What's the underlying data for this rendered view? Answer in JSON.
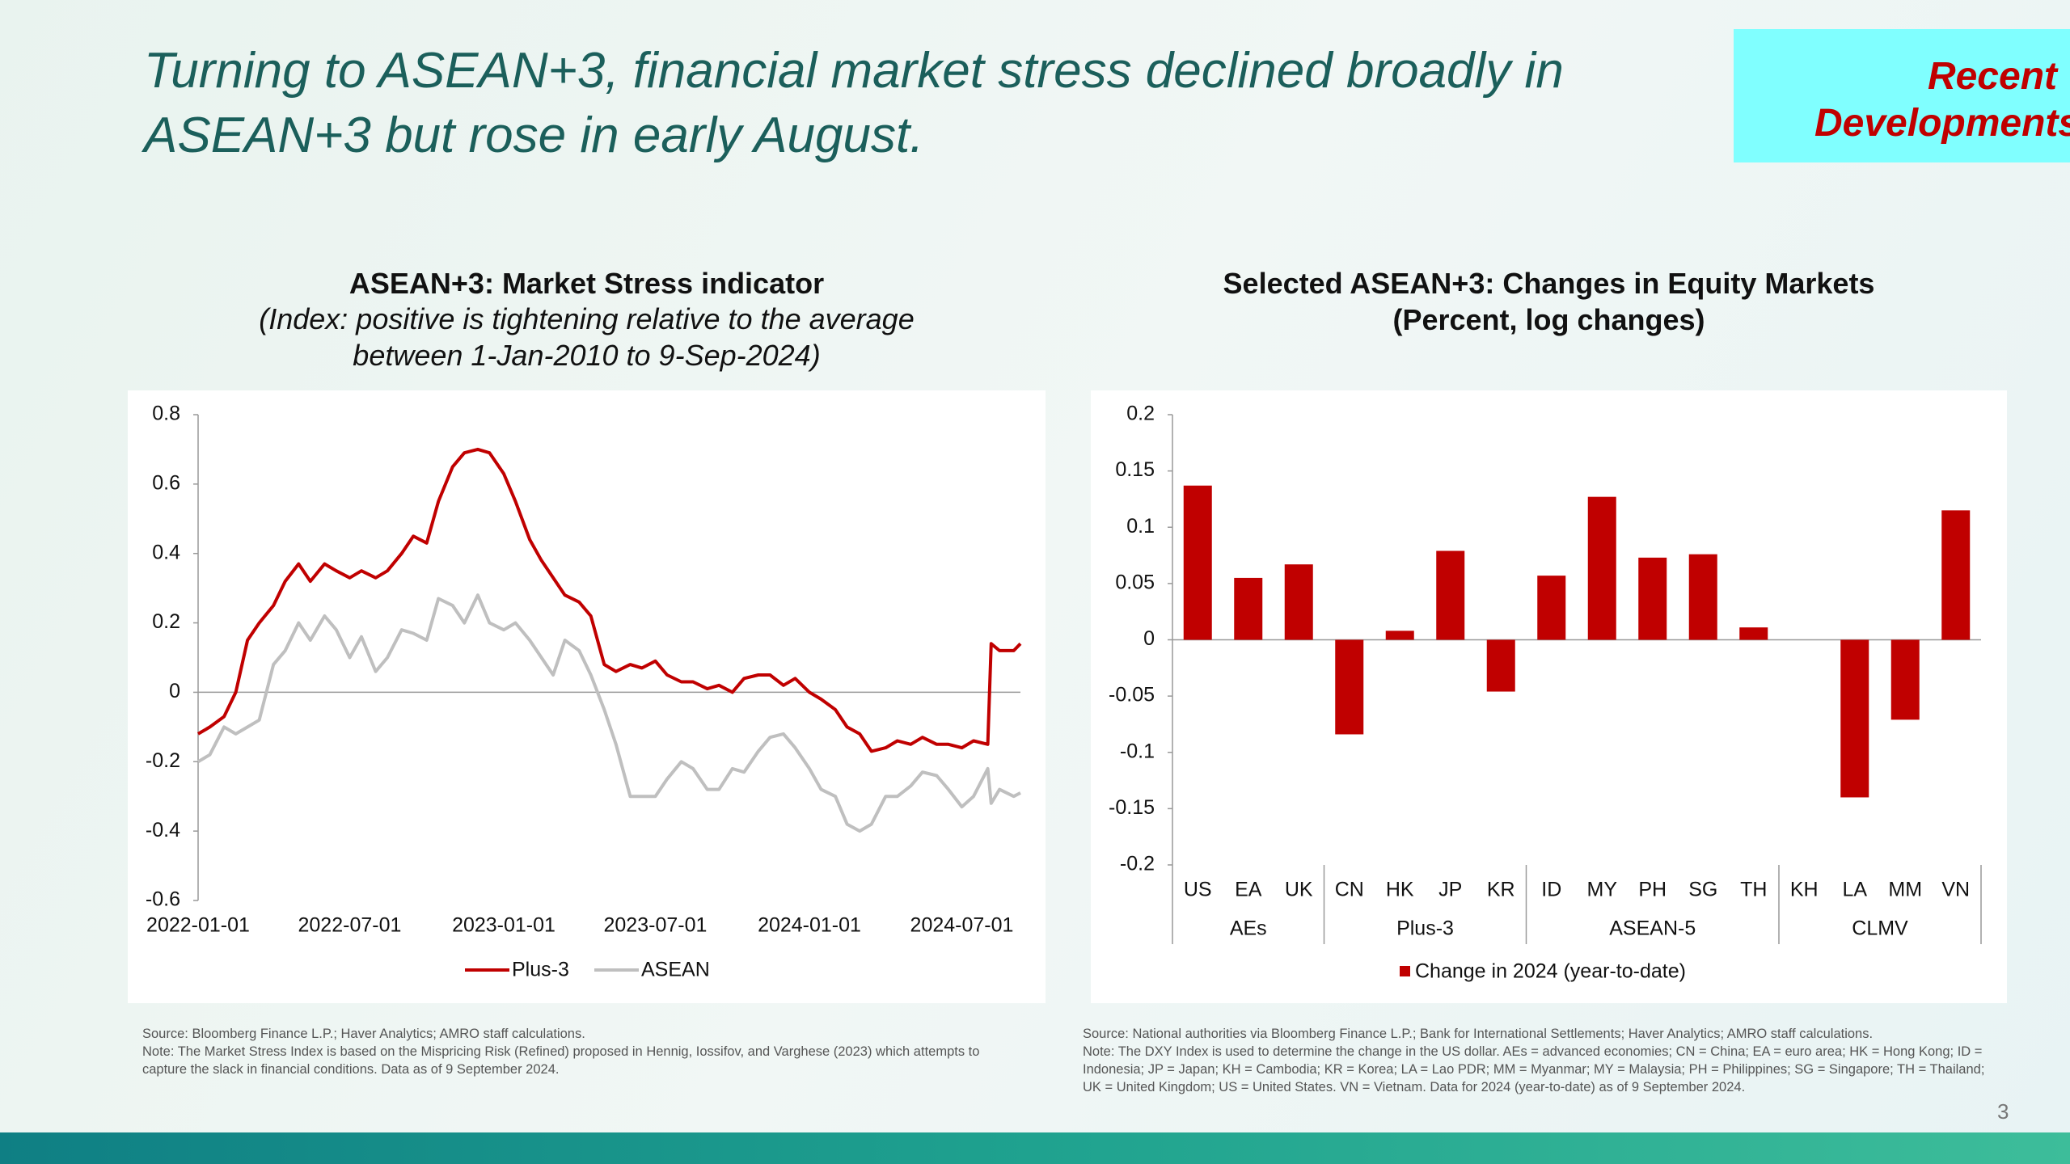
{
  "slide": {
    "title": "Turning to ASEAN+3, financial market stress declined broadly in ASEAN+3 but rose in early August.",
    "tag": "Recent Developments",
    "page": "3"
  },
  "chart_data": [
    {
      "type": "line",
      "title": "ASEAN+3: Market Stress indicator",
      "subtitle": "(Index: positive is tightening relative to the average between 1-Jan-2010 to 9-Sep-2024)",
      "x": [
        "2022-01-01",
        "2022-01-15",
        "2022-02-01",
        "2022-02-15",
        "2022-03-01",
        "2022-03-15",
        "2022-04-01",
        "2022-04-15",
        "2022-05-01",
        "2022-05-15",
        "2022-06-01",
        "2022-06-15",
        "2022-07-01",
        "2022-07-15",
        "2022-08-01",
        "2022-08-15",
        "2022-09-01",
        "2022-09-15",
        "2022-10-01",
        "2022-10-15",
        "2022-11-01",
        "2022-11-15",
        "2022-12-01",
        "2022-12-15",
        "2023-01-01",
        "2023-01-15",
        "2023-02-01",
        "2023-02-15",
        "2023-03-01",
        "2023-03-15",
        "2023-04-01",
        "2023-04-15",
        "2023-05-01",
        "2023-05-15",
        "2023-06-01",
        "2023-06-15",
        "2023-07-01",
        "2023-07-15",
        "2023-08-01",
        "2023-08-15",
        "2023-09-01",
        "2023-09-15",
        "2023-10-01",
        "2023-10-15",
        "2023-11-01",
        "2023-11-15",
        "2023-12-01",
        "2023-12-15",
        "2024-01-01",
        "2024-01-15",
        "2024-02-01",
        "2024-02-15",
        "2024-03-01",
        "2024-03-15",
        "2024-04-01",
        "2024-04-15",
        "2024-05-01",
        "2024-05-15",
        "2024-06-01",
        "2024-06-15",
        "2024-07-01",
        "2024-07-15",
        "2024-08-01",
        "2024-08-05",
        "2024-08-15",
        "2024-09-01",
        "2024-09-09"
      ],
      "series": [
        {
          "name": "Plus-3",
          "color": "#c00000",
          "values": [
            -0.12,
            -0.1,
            -0.07,
            0.0,
            0.15,
            0.2,
            0.25,
            0.32,
            0.37,
            0.32,
            0.37,
            0.35,
            0.33,
            0.35,
            0.33,
            0.35,
            0.4,
            0.45,
            0.43,
            0.55,
            0.65,
            0.69,
            0.7,
            0.69,
            0.63,
            0.55,
            0.44,
            0.38,
            0.33,
            0.28,
            0.26,
            0.22,
            0.08,
            0.06,
            0.08,
            0.07,
            0.09,
            0.05,
            0.03,
            0.03,
            0.01,
            0.02,
            0.0,
            0.04,
            0.05,
            0.05,
            0.02,
            0.04,
            0.0,
            -0.02,
            -0.05,
            -0.1,
            -0.12,
            -0.17,
            -0.16,
            -0.14,
            -0.15,
            -0.13,
            -0.15,
            -0.15,
            -0.16,
            -0.14,
            -0.15,
            0.14,
            0.12,
            0.12,
            0.14
          ]
        },
        {
          "name": "ASEAN",
          "color": "#bfbfbf",
          "values": [
            -0.2,
            -0.18,
            -0.1,
            -0.12,
            -0.1,
            -0.08,
            0.08,
            0.12,
            0.2,
            0.15,
            0.22,
            0.18,
            0.1,
            0.16,
            0.06,
            0.1,
            0.18,
            0.17,
            0.15,
            0.27,
            0.25,
            0.2,
            0.28,
            0.2,
            0.18,
            0.2,
            0.15,
            0.1,
            0.05,
            0.15,
            0.12,
            0.05,
            -0.05,
            -0.15,
            -0.3,
            -0.3,
            -0.3,
            -0.25,
            -0.2,
            -0.22,
            -0.28,
            -0.28,
            -0.22,
            -0.23,
            -0.17,
            -0.13,
            -0.12,
            -0.16,
            -0.22,
            -0.28,
            -0.3,
            -0.38,
            -0.4,
            -0.38,
            -0.3,
            -0.3,
            -0.27,
            -0.23,
            -0.24,
            -0.28,
            -0.33,
            -0.3,
            -0.22,
            -0.32,
            -0.28,
            -0.3,
            -0.29
          ]
        }
      ],
      "xlim": [
        "2022-01-01",
        "2024-09-09"
      ],
      "xticks": [
        "2022-01-01",
        "2022-07-01",
        "2023-01-01",
        "2023-07-01",
        "2024-01-01",
        "2024-07-01"
      ],
      "ylim": [
        -0.6,
        0.8
      ],
      "yticks": [
        -0.6,
        -0.4,
        -0.2,
        0,
        0.2,
        0.4,
        0.6,
        0.8
      ],
      "legend": "bottom",
      "source": "Source: Bloomberg Finance L.P.; Haver Analytics; AMRO staff calculations.",
      "note": "Note: The Market Stress Index is based on the Mispricing Risk (Refined) proposed in Hennig, Iossifov, and Varghese (2023) which attempts to capture the slack in financial conditions. Data as of 9 September 2024."
    },
    {
      "type": "bar",
      "title": "Selected ASEAN+3: Changes in Equity Markets",
      "subtitle": "(Percent, log changes)",
      "groups": [
        {
          "label": "AEs",
          "categories": [
            "US",
            "EA",
            "UK"
          ]
        },
        {
          "label": "Plus-3",
          "categories": [
            "CN",
            "HK",
            "JP",
            "KR"
          ]
        },
        {
          "label": "ASEAN-5",
          "categories": [
            "ID",
            "MY",
            "PH",
            "SG",
            "TH"
          ]
        },
        {
          "label": "CLMV",
          "categories": [
            "KH",
            "LA",
            "MM",
            "VN"
          ]
        }
      ],
      "series": [
        {
          "name": "Change in 2024 (year-to-date)",
          "color": "#c00000",
          "values": [
            0.137,
            0.055,
            0.067,
            -0.084,
            0.008,
            0.079,
            -0.046,
            0.057,
            0.127,
            0.073,
            0.076,
            0.011,
            null,
            -0.14,
            -0.071,
            0.115
          ]
        }
      ],
      "ylim": [
        -0.2,
        0.2
      ],
      "yticks": [
        -0.2,
        -0.15,
        -0.1,
        -0.05,
        0,
        0.05,
        0.1,
        0.15,
        0.2
      ],
      "legend": "bottom",
      "source": "Source: National authorities via Bloomberg Finance L.P.; Bank for International Settlements; Haver Analytics; AMRO staff calculations.",
      "note": "Note: The DXY Index is used to determine the change in the US dollar. AEs = advanced economies; CN = China; EA = euro area; HK = Hong Kong; ID = Indonesia; JP = Japan; KH = Cambodia; KR = Korea; LA = Lao PDR; MM = Myanmar; MY = Malaysia; PH = Philippines; SG = Singapore; TH = Thailand; UK = United Kingdom; US = United States. VN = Vietnam. Data for 2024 (year-to-date) as of 9 September 2024."
    }
  ]
}
